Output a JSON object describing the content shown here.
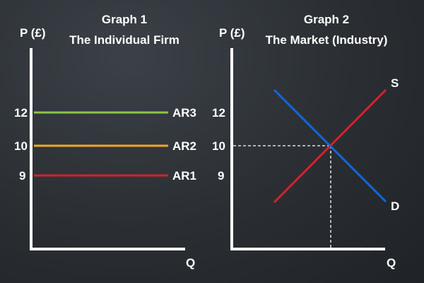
{
  "chart_data": [
    {
      "type": "line",
      "title": "Graph 1",
      "subtitle": "The Individual Firm",
      "ylabel": "P (£)",
      "xlabel": "Q",
      "ylim": [
        0,
        16
      ],
      "y_ticks": [
        {
          "value": 12,
          "label": "12"
        },
        {
          "value": 10,
          "label": "10"
        },
        {
          "value": 9,
          "label": "9"
        }
      ],
      "grid": false,
      "series": [
        {
          "name": "AR3",
          "y": 12,
          "color": "#8dc63f"
        },
        {
          "name": "AR2",
          "y": 10,
          "color": "#f5a623"
        },
        {
          "name": "AR1",
          "y": 9,
          "color": "#d2232a"
        }
      ]
    },
    {
      "type": "line",
      "title": "Graph 2",
      "subtitle": "The Market (Industry)",
      "ylabel": "P (£)",
      "xlabel": "Q",
      "ylim": [
        0,
        16
      ],
      "y_ticks": [
        {
          "value": 12,
          "label": "12"
        },
        {
          "value": 10,
          "label": "10"
        },
        {
          "value": 9,
          "label": "9"
        }
      ],
      "grid": false,
      "series": [
        {
          "name": "S",
          "color": "#d2232a",
          "direction": "upward-sloping"
        },
        {
          "name": "D",
          "color": "#1565d8",
          "direction": "downward-sloping"
        }
      ],
      "equilibrium": {
        "price": 10
      }
    }
  ]
}
